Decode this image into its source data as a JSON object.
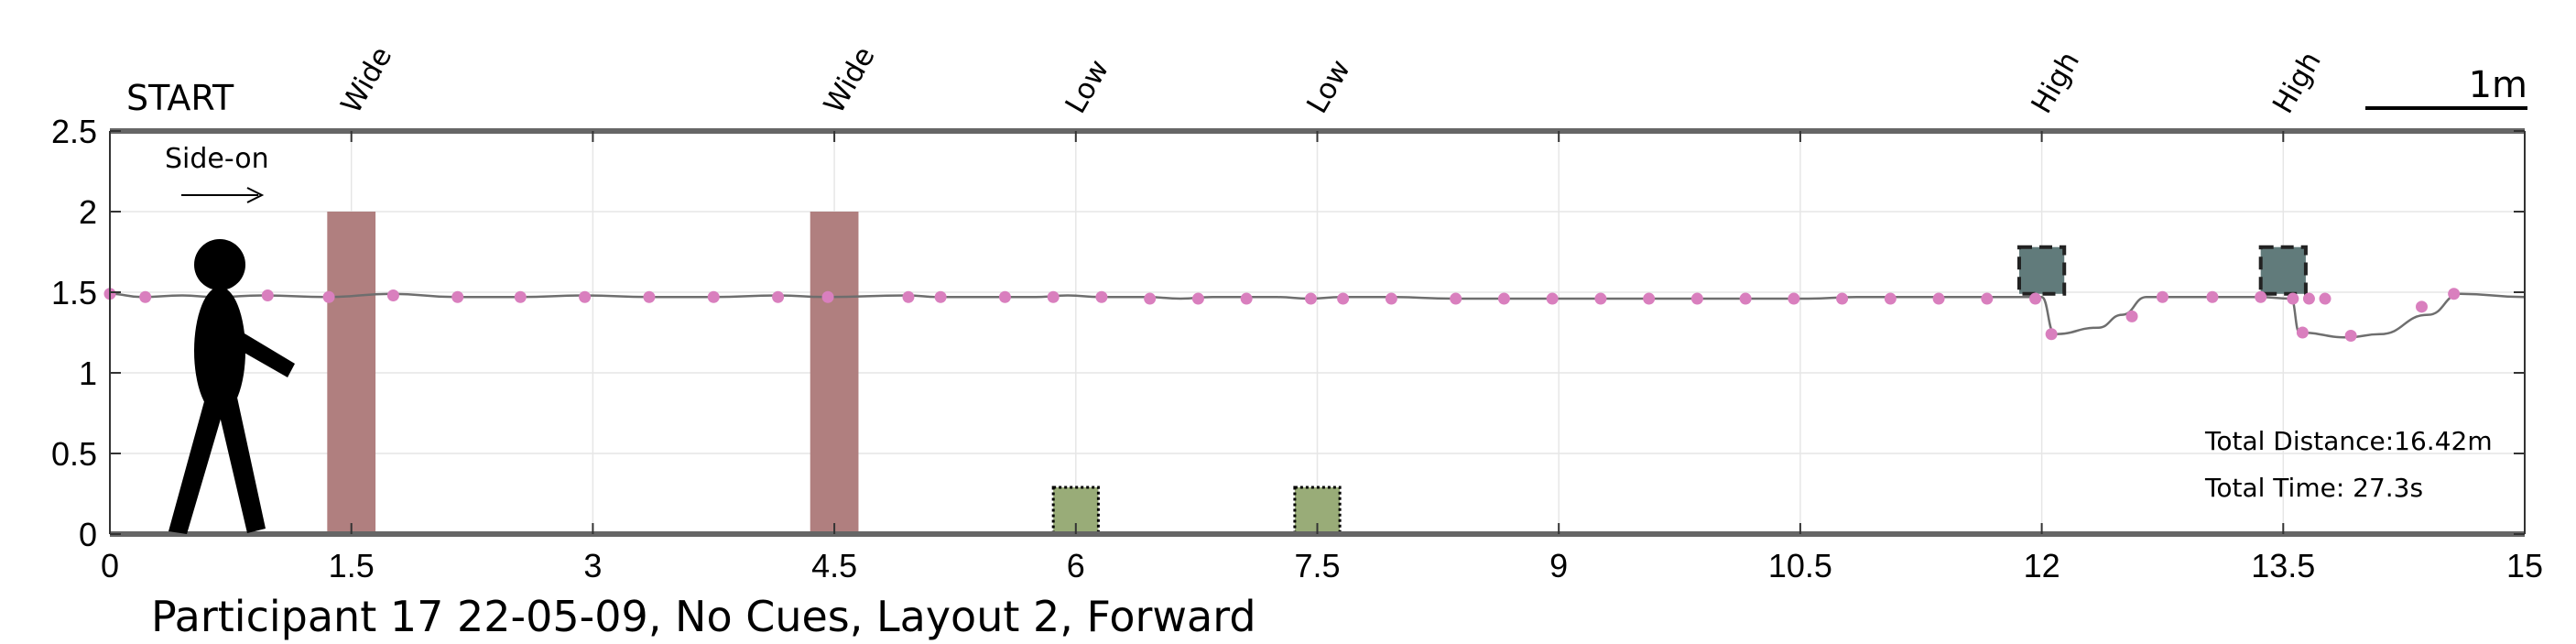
{
  "chart_data": {
    "type": "line",
    "title": "Participant 17 22-05-09, No Cues, Layout 2, Forward",
    "start_label": "START",
    "direction_label": "Side-on",
    "scale_bar_label": "1m",
    "xlim": [
      0,
      15
    ],
    "ylim": [
      0,
      2.5
    ],
    "x_ticks": [
      0,
      1.5,
      3,
      4.5,
      6,
      7.5,
      9,
      10.5,
      12,
      13.5,
      15
    ],
    "x_tick_labels": [
      "0",
      "1.5",
      "3",
      "4.5",
      "6",
      "7.5",
      "9",
      "10.5",
      "12",
      "13.5",
      "15"
    ],
    "y_ticks": [
      0,
      0.5,
      1,
      1.5,
      2,
      2.5
    ],
    "y_tick_labels": [
      "0",
      "0.5",
      "1",
      "1.5",
      "2",
      "2.5"
    ],
    "grid": true,
    "obstacles": [
      {
        "label": "Wide",
        "kind": "wide",
        "x": [
          1.35,
          1.65
        ],
        "y": [
          0,
          2.0
        ],
        "color": "#b07f7f"
      },
      {
        "label": "Wide",
        "kind": "wide",
        "x": [
          4.35,
          4.65
        ],
        "y": [
          0,
          2.0
        ],
        "color": "#b07f7f"
      },
      {
        "label": "Low",
        "kind": "low",
        "x": [
          5.86,
          6.14
        ],
        "y": [
          0,
          0.29
        ],
        "color": "#99ac78"
      },
      {
        "label": "Low",
        "kind": "low",
        "x": [
          7.36,
          7.64
        ],
        "y": [
          0,
          0.29
        ],
        "color": "#99ac78"
      },
      {
        "label": "High",
        "kind": "high",
        "x": [
          11.86,
          12.14
        ],
        "y": [
          1.49,
          1.78
        ],
        "color": "#617b7b"
      },
      {
        "label": "High",
        "kind": "high",
        "x": [
          13.36,
          13.64
        ],
        "y": [
          1.49,
          1.78
        ],
        "color": "#617b7b"
      }
    ],
    "path_color": "#6e6e6e",
    "marker_color": "#d97fbe",
    "series": [
      {
        "values": [
          [
            0.0,
            1.49
          ],
          [
            0.2,
            1.47
          ],
          [
            0.45,
            1.48
          ],
          [
            0.65,
            1.47
          ],
          [
            0.95,
            1.48
          ],
          [
            1.35,
            1.47
          ],
          [
            1.75,
            1.49
          ],
          [
            2.15,
            1.47
          ],
          [
            2.55,
            1.47
          ],
          [
            2.95,
            1.48
          ],
          [
            3.35,
            1.47
          ],
          [
            3.75,
            1.47
          ],
          [
            4.15,
            1.48
          ],
          [
            4.45,
            1.47
          ],
          [
            4.95,
            1.48
          ],
          [
            5.15,
            1.47
          ],
          [
            5.55,
            1.47
          ],
          [
            5.75,
            1.47
          ],
          [
            5.95,
            1.48
          ],
          [
            6.15,
            1.47
          ],
          [
            6.45,
            1.47
          ],
          [
            6.65,
            1.46
          ],
          [
            6.85,
            1.47
          ],
          [
            7.05,
            1.47
          ],
          [
            7.25,
            1.47
          ],
          [
            7.45,
            1.46
          ],
          [
            7.65,
            1.47
          ],
          [
            7.95,
            1.47
          ],
          [
            8.35,
            1.46
          ],
          [
            8.65,
            1.46
          ],
          [
            8.95,
            1.46
          ],
          [
            9.15,
            1.46
          ],
          [
            9.45,
            1.46
          ],
          [
            9.75,
            1.46
          ],
          [
            10.05,
            1.46
          ],
          [
            10.25,
            1.46
          ],
          [
            10.55,
            1.46
          ],
          [
            10.85,
            1.47
          ],
          [
            11.15,
            1.47
          ],
          [
            11.45,
            1.47
          ],
          [
            11.75,
            1.47
          ],
          [
            12.0,
            1.47
          ],
          [
            12.08,
            1.24
          ],
          [
            12.35,
            1.28
          ],
          [
            12.5,
            1.36
          ],
          [
            12.65,
            1.47
          ],
          [
            12.85,
            1.47
          ],
          [
            13.1,
            1.47
          ],
          [
            13.35,
            1.47
          ],
          [
            13.55,
            1.46
          ],
          [
            13.6,
            1.25
          ],
          [
            13.9,
            1.22
          ],
          [
            14.1,
            1.24
          ],
          [
            14.4,
            1.36
          ],
          [
            14.6,
            1.49
          ],
          [
            15.0,
            1.47
          ]
        ],
        "markers": [
          [
            0.0,
            1.49
          ],
          [
            0.22,
            1.47
          ],
          [
            0.68,
            1.47
          ],
          [
            0.98,
            1.48
          ],
          [
            1.36,
            1.47
          ],
          [
            1.76,
            1.48
          ],
          [
            2.16,
            1.47
          ],
          [
            2.55,
            1.47
          ],
          [
            2.95,
            1.47
          ],
          [
            3.35,
            1.47
          ],
          [
            3.75,
            1.47
          ],
          [
            4.15,
            1.47
          ],
          [
            4.46,
            1.47
          ],
          [
            4.96,
            1.47
          ],
          [
            5.16,
            1.47
          ],
          [
            5.56,
            1.47
          ],
          [
            5.86,
            1.47
          ],
          [
            6.16,
            1.47
          ],
          [
            6.46,
            1.46
          ],
          [
            6.76,
            1.46
          ],
          [
            7.06,
            1.46
          ],
          [
            7.46,
            1.46
          ],
          [
            7.66,
            1.46
          ],
          [
            7.96,
            1.46
          ],
          [
            8.36,
            1.46
          ],
          [
            8.66,
            1.46
          ],
          [
            8.96,
            1.46
          ],
          [
            9.26,
            1.46
          ],
          [
            9.56,
            1.46
          ],
          [
            9.86,
            1.46
          ],
          [
            10.16,
            1.46
          ],
          [
            10.46,
            1.46
          ],
          [
            10.76,
            1.46
          ],
          [
            11.06,
            1.46
          ],
          [
            11.36,
            1.46
          ],
          [
            11.66,
            1.46
          ],
          [
            11.96,
            1.46
          ],
          [
            12.06,
            1.24
          ],
          [
            12.56,
            1.35
          ],
          [
            12.75,
            1.47
          ],
          [
            13.06,
            1.47
          ],
          [
            13.36,
            1.47
          ],
          [
            13.56,
            1.46
          ],
          [
            13.66,
            1.46
          ],
          [
            13.76,
            1.46
          ],
          [
            13.62,
            1.25
          ],
          [
            13.92,
            1.23
          ],
          [
            14.36,
            1.41
          ],
          [
            14.56,
            1.49
          ]
        ]
      }
    ],
    "annotations": {
      "total_distance": "Total Distance:16.42m",
      "total_time": "Total Time: 27.3s"
    }
  }
}
